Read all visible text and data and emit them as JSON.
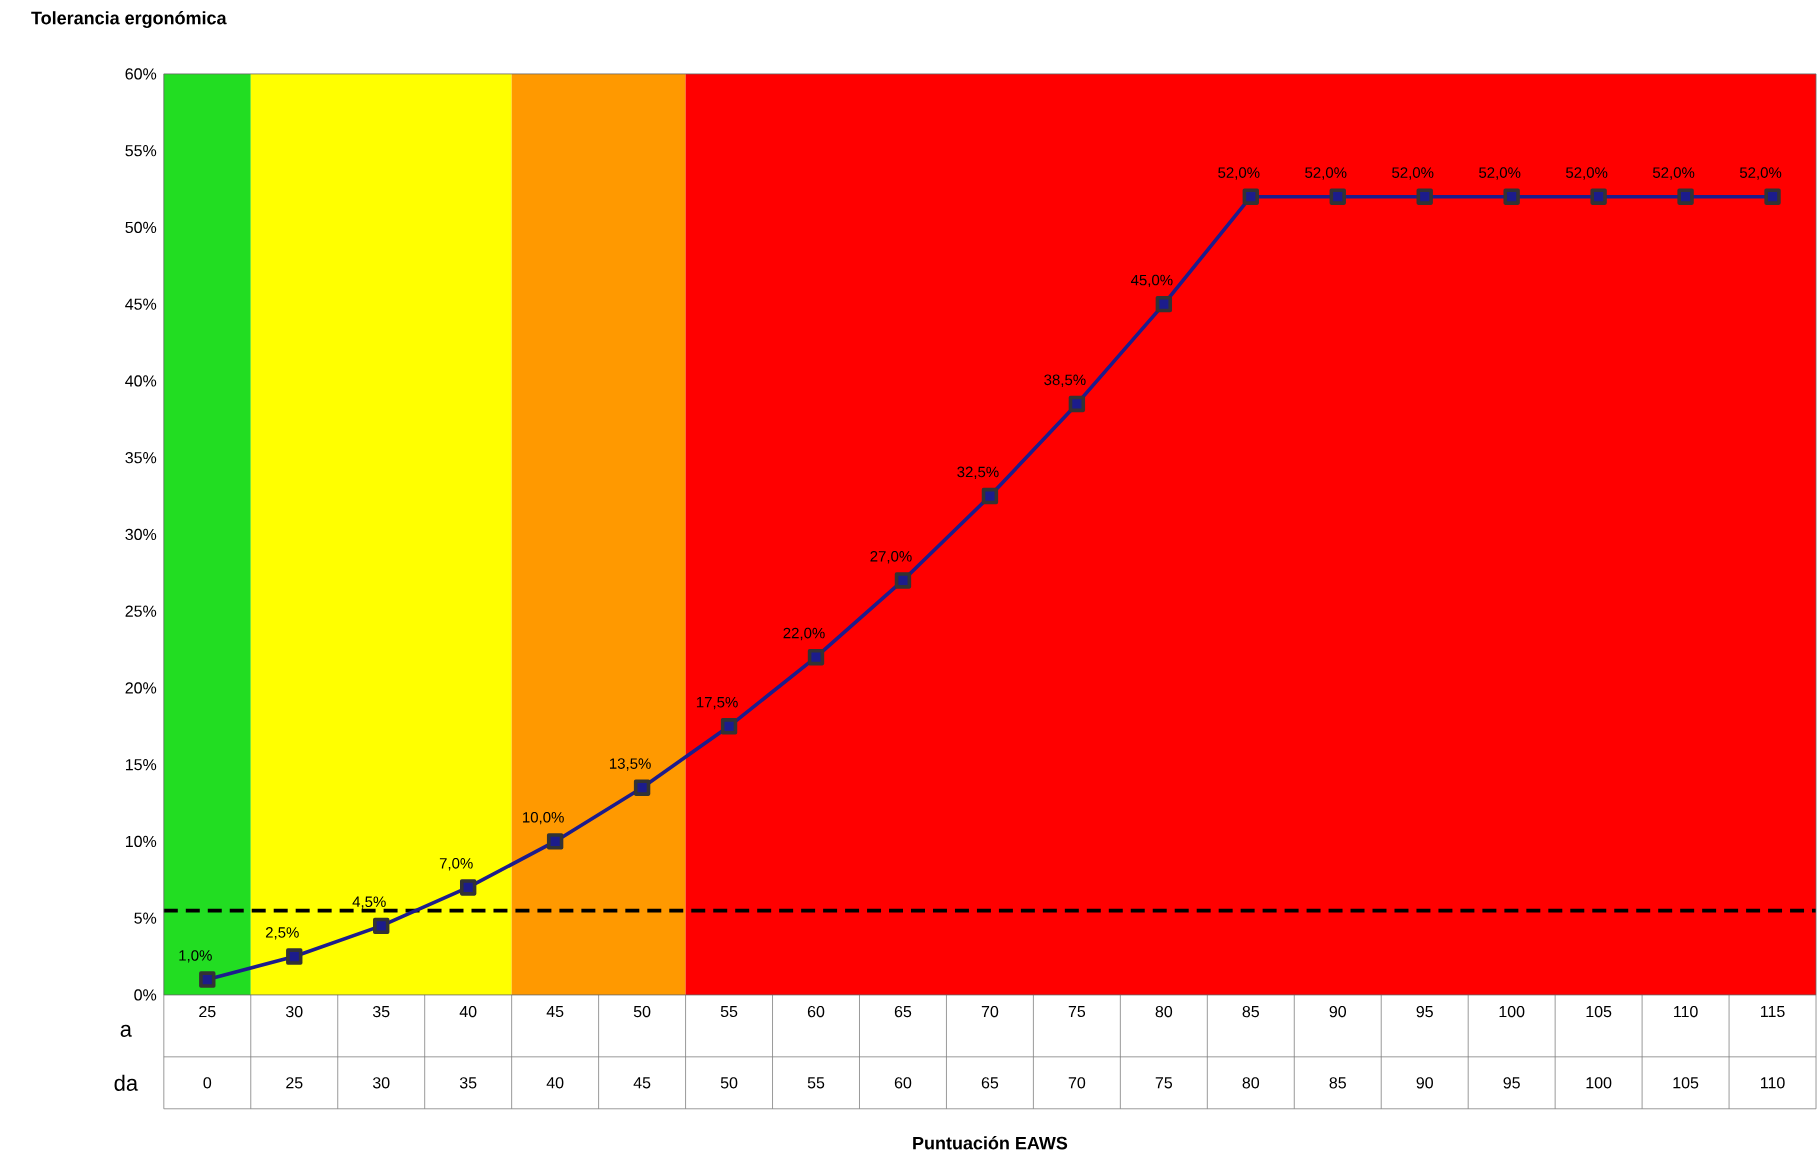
{
  "chart_data": {
    "type": "line",
    "categories": [
      "25",
      "30",
      "35",
      "40",
      "45",
      "50",
      "55",
      "60",
      "65",
      "70",
      "75",
      "80",
      "85",
      "90",
      "95",
      "100",
      "105",
      "110",
      "115"
    ],
    "series": [
      {
        "color": "#1c1c8c",
        "values": [
          1.0,
          2.5,
          4.5,
          7.0,
          10.0,
          13.5,
          17.5,
          22.0,
          27.0,
          32.5,
          38.5,
          45.0,
          52.0,
          52.0,
          52.0,
          52.0,
          52.0,
          52.0,
          52.0
        ],
        "value_labels": [
          "1,0%",
          "2,5%",
          "4,5%",
          "7,0%",
          "10,0%",
          "13,5%",
          "17,5%",
          "22,0%",
          "27,0%",
          "32,5%",
          "38,5%",
          "45,0%",
          "52,0%",
          "52,0%",
          "52,0%",
          "52,0%",
          "52,0%",
          "52,0%",
          "52,0%"
        ]
      }
    ],
    "ylim": [
      0,
      60
    ],
    "yticks": [
      {
        "value": 0,
        "label": "0%"
      },
      {
        "value": 5,
        "label": "5%"
      },
      {
        "value": 10,
        "label": "10%"
      },
      {
        "value": 15,
        "label": "15%"
      },
      {
        "value": 20,
        "label": "20%"
      },
      {
        "value": 25,
        "label": "25%"
      },
      {
        "value": 30,
        "label": "30%"
      },
      {
        "value": 35,
        "label": "35%"
      },
      {
        "value": 40,
        "label": "40%"
      },
      {
        "value": 45,
        "label": "45%"
      },
      {
        "value": 50,
        "label": "50%"
      },
      {
        "value": 55,
        "label": "55%"
      },
      {
        "value": 60,
        "label": "60%"
      }
    ],
    "marker": "square",
    "line_style": "solid",
    "grid": false,
    "bands": [
      {
        "axis": "x",
        "from": "25",
        "to": "25",
        "color": "#22dd22"
      },
      {
        "axis": "x",
        "from": "30",
        "to": "40",
        "color": "#ffff00"
      },
      {
        "axis": "x",
        "from": "45",
        "to": "50",
        "color": "#ff9900"
      },
      {
        "axis": "x",
        "from": "55",
        "to": "115",
        "color": "#ff0000"
      }
    ],
    "ref_lines": [
      {
        "axis": "y",
        "value": 5.5,
        "line_style": "dashed",
        "color": "#000000"
      }
    ],
    "annotations": [
      "Tolerancia ergonómica",
      "Puntuación EAWS",
      "a",
      "da",
      "0",
      "25",
      "30",
      "35",
      "40",
      "45",
      "50",
      "55",
      "60",
      "65",
      "70",
      "75",
      "80",
      "85",
      "90",
      "95",
      "100",
      "105",
      "110"
    ]
  }
}
